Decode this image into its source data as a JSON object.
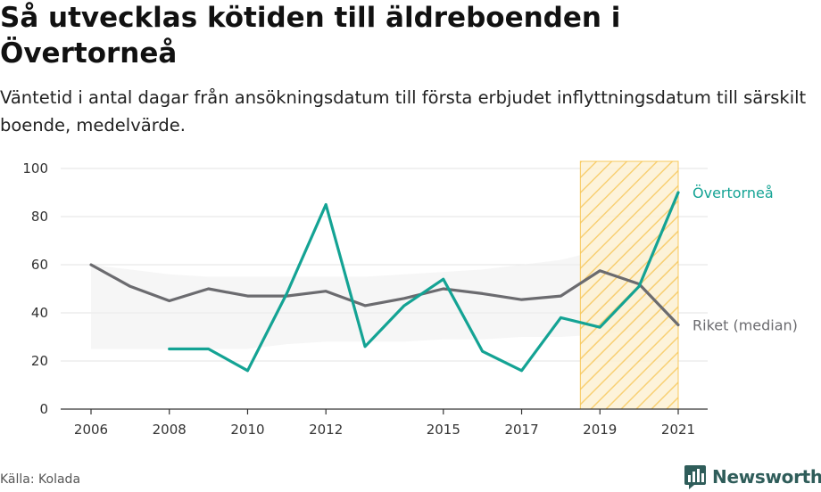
{
  "header": {
    "title": "Så utvecklas kötiden till äldreboenden i Övertorneå",
    "subtitle": "Väntetid i antal dagar från ansökningsdatum till första erbjudet inflyttningsdatum till särskilt boende, medelvärde."
  },
  "footer": {
    "source": "Källa: Kolada",
    "brand": "Newsworthy"
  },
  "colors": {
    "municipality": "#14a394",
    "national": "#6b6b6f",
    "highlight": "#f7c85c",
    "band": "#eeeeee"
  },
  "chart_data": {
    "type": "line",
    "x": [
      2006,
      2007,
      2008,
      2009,
      2010,
      2011,
      2012,
      2013,
      2014,
      2015,
      2016,
      2017,
      2018,
      2019,
      2020,
      2021
    ],
    "x_tick_labels": [
      "2006",
      "2008",
      "2010",
      "2012",
      "2015",
      "2017",
      "2019",
      "2021"
    ],
    "y_tick_labels": [
      "0",
      "20",
      "40",
      "60",
      "80",
      "100"
    ],
    "ylim": [
      0,
      100
    ],
    "xlim": [
      2006,
      2021
    ],
    "grid": "horizontal",
    "highlight_range": [
      2018.5,
      2021
    ],
    "series": [
      {
        "name": "Övertorneå",
        "color": "#14a394",
        "values": [
          null,
          null,
          25,
          25,
          16,
          48,
          85,
          26,
          43,
          54,
          24,
          16,
          38,
          34,
          51,
          90
        ]
      },
      {
        "name": "Riket (median)",
        "color": "#6b6b6f",
        "values": [
          60,
          51,
          45,
          50,
          47,
          47,
          49,
          43,
          46,
          50,
          48,
          45.5,
          47,
          57.5,
          52,
          35
        ]
      }
    ],
    "band": {
      "lower": [
        25,
        25,
        25,
        25,
        25,
        27,
        28,
        28,
        28,
        29,
        29,
        30,
        30,
        31,
        33,
        35
      ],
      "upper": [
        60,
        58,
        56,
        55,
        55,
        55,
        55,
        55,
        56,
        57,
        58,
        60,
        62,
        66,
        70,
        74
      ]
    }
  }
}
